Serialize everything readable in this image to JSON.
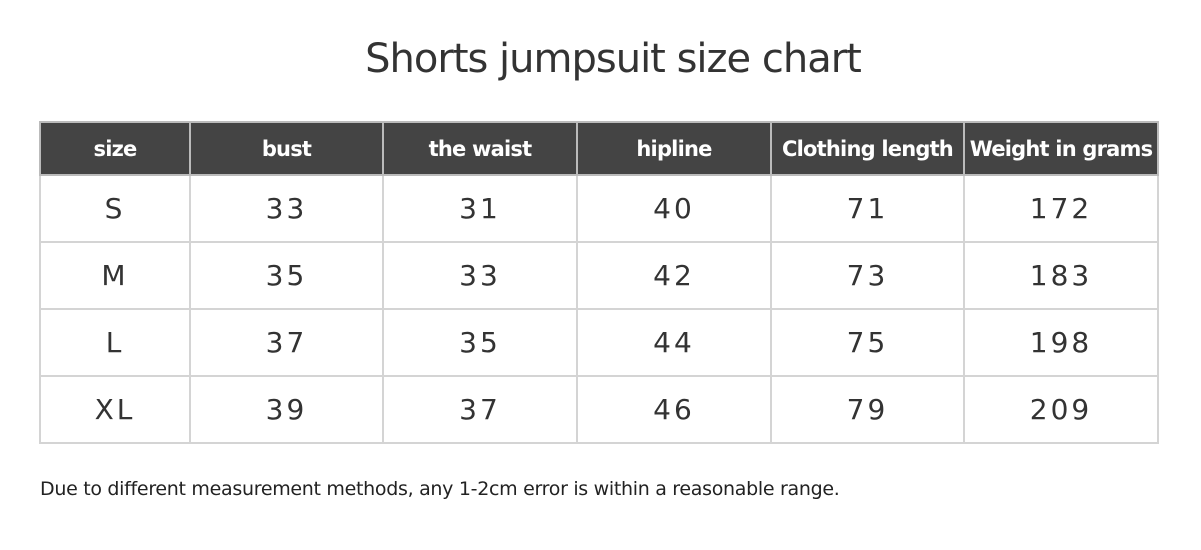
{
  "title": "Shorts jumpsuit size chart",
  "table": {
    "headers": [
      "size",
      "bust",
      "the waist",
      "hipline",
      "Clothing length",
      "Weight in grams"
    ],
    "rows": [
      [
        "S",
        "33",
        "31",
        "40",
        "71",
        "172"
      ],
      [
        "M",
        "35",
        "33",
        "42",
        "73",
        "183"
      ],
      [
        "L",
        "37",
        "35",
        "44",
        "75",
        "198"
      ],
      [
        "XL",
        "39",
        "37",
        "46",
        "79",
        "209"
      ]
    ]
  },
  "note": "Due to different measurement methods, any 1-2cm error is within a reasonable range.",
  "colors": {
    "header_bg": "#444444",
    "header_text": "#ffffff",
    "border": "#d4d4d4"
  }
}
